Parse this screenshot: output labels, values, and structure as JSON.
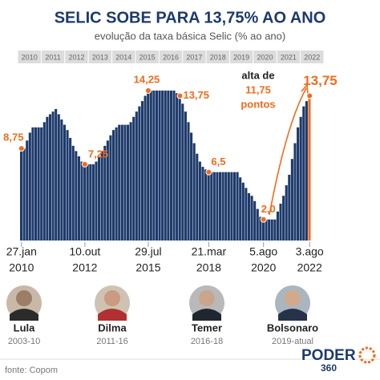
{
  "chart_data": {
    "type": "step-bar",
    "title": "SELIC SOBE PARA 13,75% AO ANO",
    "subtitle": "evolução da taxa básica Selic (% ao ano)",
    "year_bands": [
      "2010",
      "2011",
      "2012",
      "2013",
      "2014",
      "2015",
      "2016",
      "2017",
      "2018",
      "2019",
      "2020",
      "2021",
      "2022"
    ],
    "color": "#1d3a6b",
    "highlight_color": "#f26b1d",
    "ylim": [
      0,
      16
    ],
    "values": [
      8.75,
      8.75,
      9.5,
      10.25,
      10.75,
      10.75,
      10.75,
      10.75,
      11.25,
      11.75,
      12,
      12.25,
      12.5,
      12,
      11.5,
      11,
      10.5,
      9.75,
      9,
      8.5,
      8,
      7.5,
      7.25,
      7.25,
      7.25,
      7.25,
      7.5,
      8,
      8.5,
      9,
      9.5,
      10,
      10.5,
      10.75,
      11,
      11,
      11,
      11,
      11.25,
      11.75,
      12.25,
      12.75,
      13.25,
      13.75,
      14.25,
      14.25,
      14.25,
      14.25,
      14.25,
      14.25,
      14.25,
      14.25,
      14.25,
      14.25,
      14,
      13.75,
      13,
      12.25,
      11.25,
      10.25,
      9.25,
      8.25,
      7.5,
      7,
      6.75,
      6.5,
      6.5,
      6.5,
      6.5,
      6.5,
      6.5,
      6.5,
      6.5,
      6.5,
      6.5,
      6.5,
      6,
      5.5,
      5,
      4.5,
      4.25,
      3.75,
      3,
      2.25,
      2,
      2,
      2,
      2,
      2,
      2.75,
      3.5,
      4.25,
      5.25,
      6.25,
      7.75,
      9.25,
      10.75,
      11.75,
      12.75,
      13.25,
      13.75
    ],
    "value_labels": [
      "8,75",
      null,
      null,
      null,
      null,
      null,
      null,
      null,
      null,
      null,
      null,
      null,
      null,
      null,
      null,
      null,
      null,
      null,
      null,
      null,
      null,
      null,
      "7,25",
      null,
      null,
      null,
      null,
      null,
      null,
      null,
      null,
      null,
      null,
      null,
      null,
      null,
      null,
      null,
      null,
      null,
      null,
      null,
      null,
      null,
      "14,25",
      null,
      null,
      null,
      null,
      null,
      null,
      null,
      null,
      null,
      null,
      "13,75",
      null,
      null,
      null,
      null,
      null,
      null,
      null,
      null,
      null,
      "6,5",
      null,
      null,
      null,
      null,
      null,
      null,
      null,
      null,
      null,
      null,
      null,
      null,
      null,
      null,
      null,
      null,
      null,
      null,
      "2,0",
      null,
      null,
      null,
      null,
      null,
      null,
      null,
      null,
      null,
      null,
      null,
      null,
      null,
      null,
      null,
      "13,75"
    ],
    "categories": [
      [
        "27.jan",
        "2010"
      ],
      null,
      null,
      null,
      null,
      null,
      null,
      null,
      null,
      null,
      null,
      null,
      null,
      null,
      null,
      null,
      null,
      null,
      null,
      null,
      null,
      null,
      [
        "10.out",
        "2012"
      ],
      null,
      null,
      null,
      null,
      null,
      null,
      null,
      null,
      null,
      null,
      null,
      null,
      null,
      null,
      null,
      null,
      null,
      null,
      null,
      null,
      null,
      [
        "29.jul",
        "2015"
      ],
      null,
      null,
      null,
      null,
      null,
      null,
      null,
      null,
      null,
      null,
      null,
      null,
      null,
      null,
      null,
      null,
      null,
      null,
      null,
      null,
      [
        "21.mar",
        "2018"
      ],
      null,
      null,
      null,
      null,
      null,
      null,
      null,
      null,
      null,
      null,
      null,
      null,
      null,
      null,
      null,
      null,
      null,
      null,
      [
        "5.ago",
        "2020"
      ],
      null,
      null,
      null,
      null,
      null,
      null,
      null,
      null,
      null,
      null,
      null,
      null,
      null,
      null,
      null,
      [
        "3.ago",
        "2022"
      ]
    ],
    "annotation": [
      "alta de",
      "11,75",
      "pontos"
    ],
    "presidents": [
      {
        "name": "Lula",
        "term": "2003-10"
      },
      {
        "name": "Dilma",
        "term": "2011-16"
      },
      {
        "name": "Temer",
        "term": "2016-18"
      },
      {
        "name": "Bolsonaro",
        "term": "2019-atual"
      }
    ],
    "source": "fonte: Copom",
    "logo": [
      "PODER",
      "360"
    ]
  }
}
